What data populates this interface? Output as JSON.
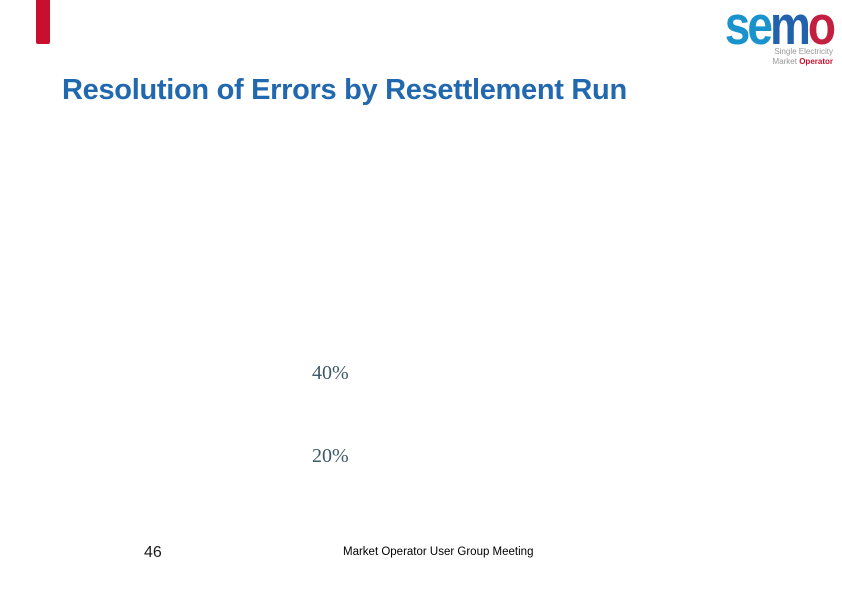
{
  "slide": {
    "title": "Resolution of Errors by Resettlement Run",
    "chart_labels": {
      "upper": "40%",
      "lower": "20%"
    },
    "footer": {
      "page_number": "46",
      "event_name": "Market Operator User Group Meeting"
    }
  },
  "logo": {
    "word": "semo",
    "letters": [
      {
        "char": "s",
        "color": "#1a93cd"
      },
      {
        "char": "e",
        "color": "#1a93cd"
      },
      {
        "char": "m",
        "color": "#2261ab"
      },
      {
        "char": "o",
        "color": "#c31f41"
      }
    ],
    "tagline_line1": "Single Electricity",
    "tagline_line2_prefix": "Market ",
    "tagline_line2_emphasis": "Operator"
  },
  "colors": {
    "accent_red": "#c8102e",
    "title_blue": "#2268ae",
    "percent_label": "#3e5a64"
  }
}
